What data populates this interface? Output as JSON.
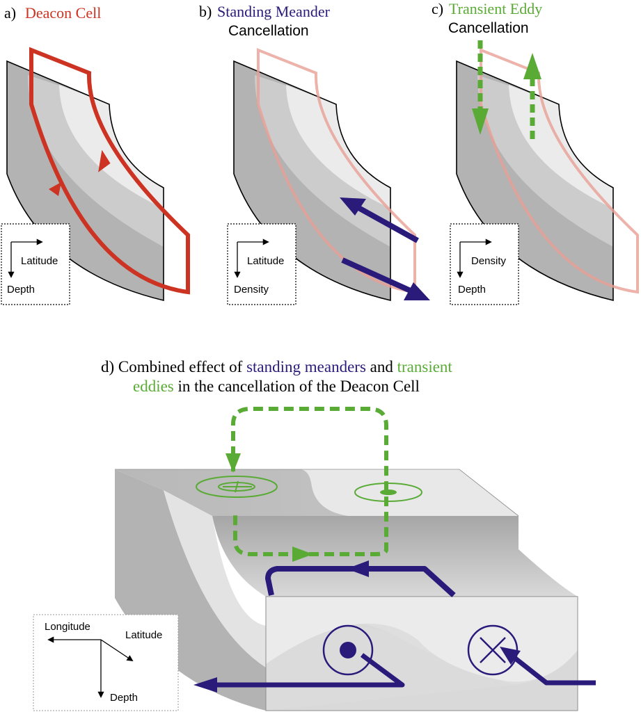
{
  "panel_a": {
    "letter": "a)",
    "title": "Deacon Cell",
    "axes": {
      "horizontal": "Latitude",
      "vertical": "Depth"
    }
  },
  "panel_b": {
    "letter": "b)",
    "title": "Standing Meander",
    "subtitle": "Cancellation",
    "axes": {
      "horizontal": "Latitude",
      "vertical": "Density"
    }
  },
  "panel_c": {
    "letter": "c)",
    "title": "Transient Eddy",
    "subtitle": "Cancellation",
    "axes": {
      "horizontal": "Density",
      "vertical": "Depth"
    }
  },
  "panel_d": {
    "prefix": "d) Combined effect of ",
    "standing": "standing meanders",
    "and": " and ",
    "transient": "transient",
    "eddies": "eddies",
    "suffix": " in the cancellation of the Deacon Cell",
    "axes": {
      "x": "Longitude",
      "y": "Latitude",
      "z": "Depth"
    }
  },
  "colors": {
    "deacon_red": "#cc3322",
    "faded_red": "#efb3ab",
    "meander_navy": "#2a1a7a",
    "eddy_green": "#5aab36",
    "dark_gray": "#b3b3b3",
    "light_gray": "#e6e6e6"
  }
}
